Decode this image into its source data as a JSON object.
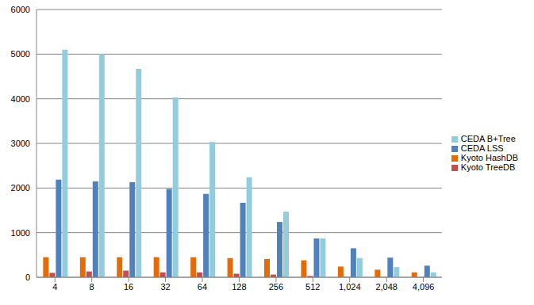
{
  "chart_data": {
    "type": "bar",
    "categories": [
      "4",
      "8",
      "16",
      "32",
      "64",
      "128",
      "256",
      "512",
      "1,024",
      "2,048",
      "4,096"
    ],
    "series": [
      {
        "name": "Kyoto HashDB",
        "color": "#e36c09",
        "values": [
          450,
          450,
          450,
          450,
          450,
          430,
          410,
          380,
          240,
          170,
          110
        ]
      },
      {
        "name": "Kyoto TreeDB",
        "color": "#c0504d",
        "values": [
          100,
          130,
          150,
          110,
          110,
          80,
          60,
          30,
          10,
          5,
          5
        ]
      },
      {
        "name": "CEDA LSS",
        "color": "#4f81bd",
        "values": [
          2190,
          2150,
          2130,
          1980,
          1870,
          1670,
          1240,
          870,
          650,
          440,
          260
        ]
      },
      {
        "name": "CEDA B+Tree",
        "color": "#93cddd",
        "values": [
          5100,
          5000,
          4670,
          4030,
          3030,
          2240,
          1470,
          870,
          430,
          230,
          110
        ]
      }
    ],
    "ylim": [
      0,
      6000
    ],
    "yticks": [
      0,
      1000,
      2000,
      3000,
      4000,
      5000,
      6000
    ],
    "grid": true,
    "legend": "right"
  }
}
